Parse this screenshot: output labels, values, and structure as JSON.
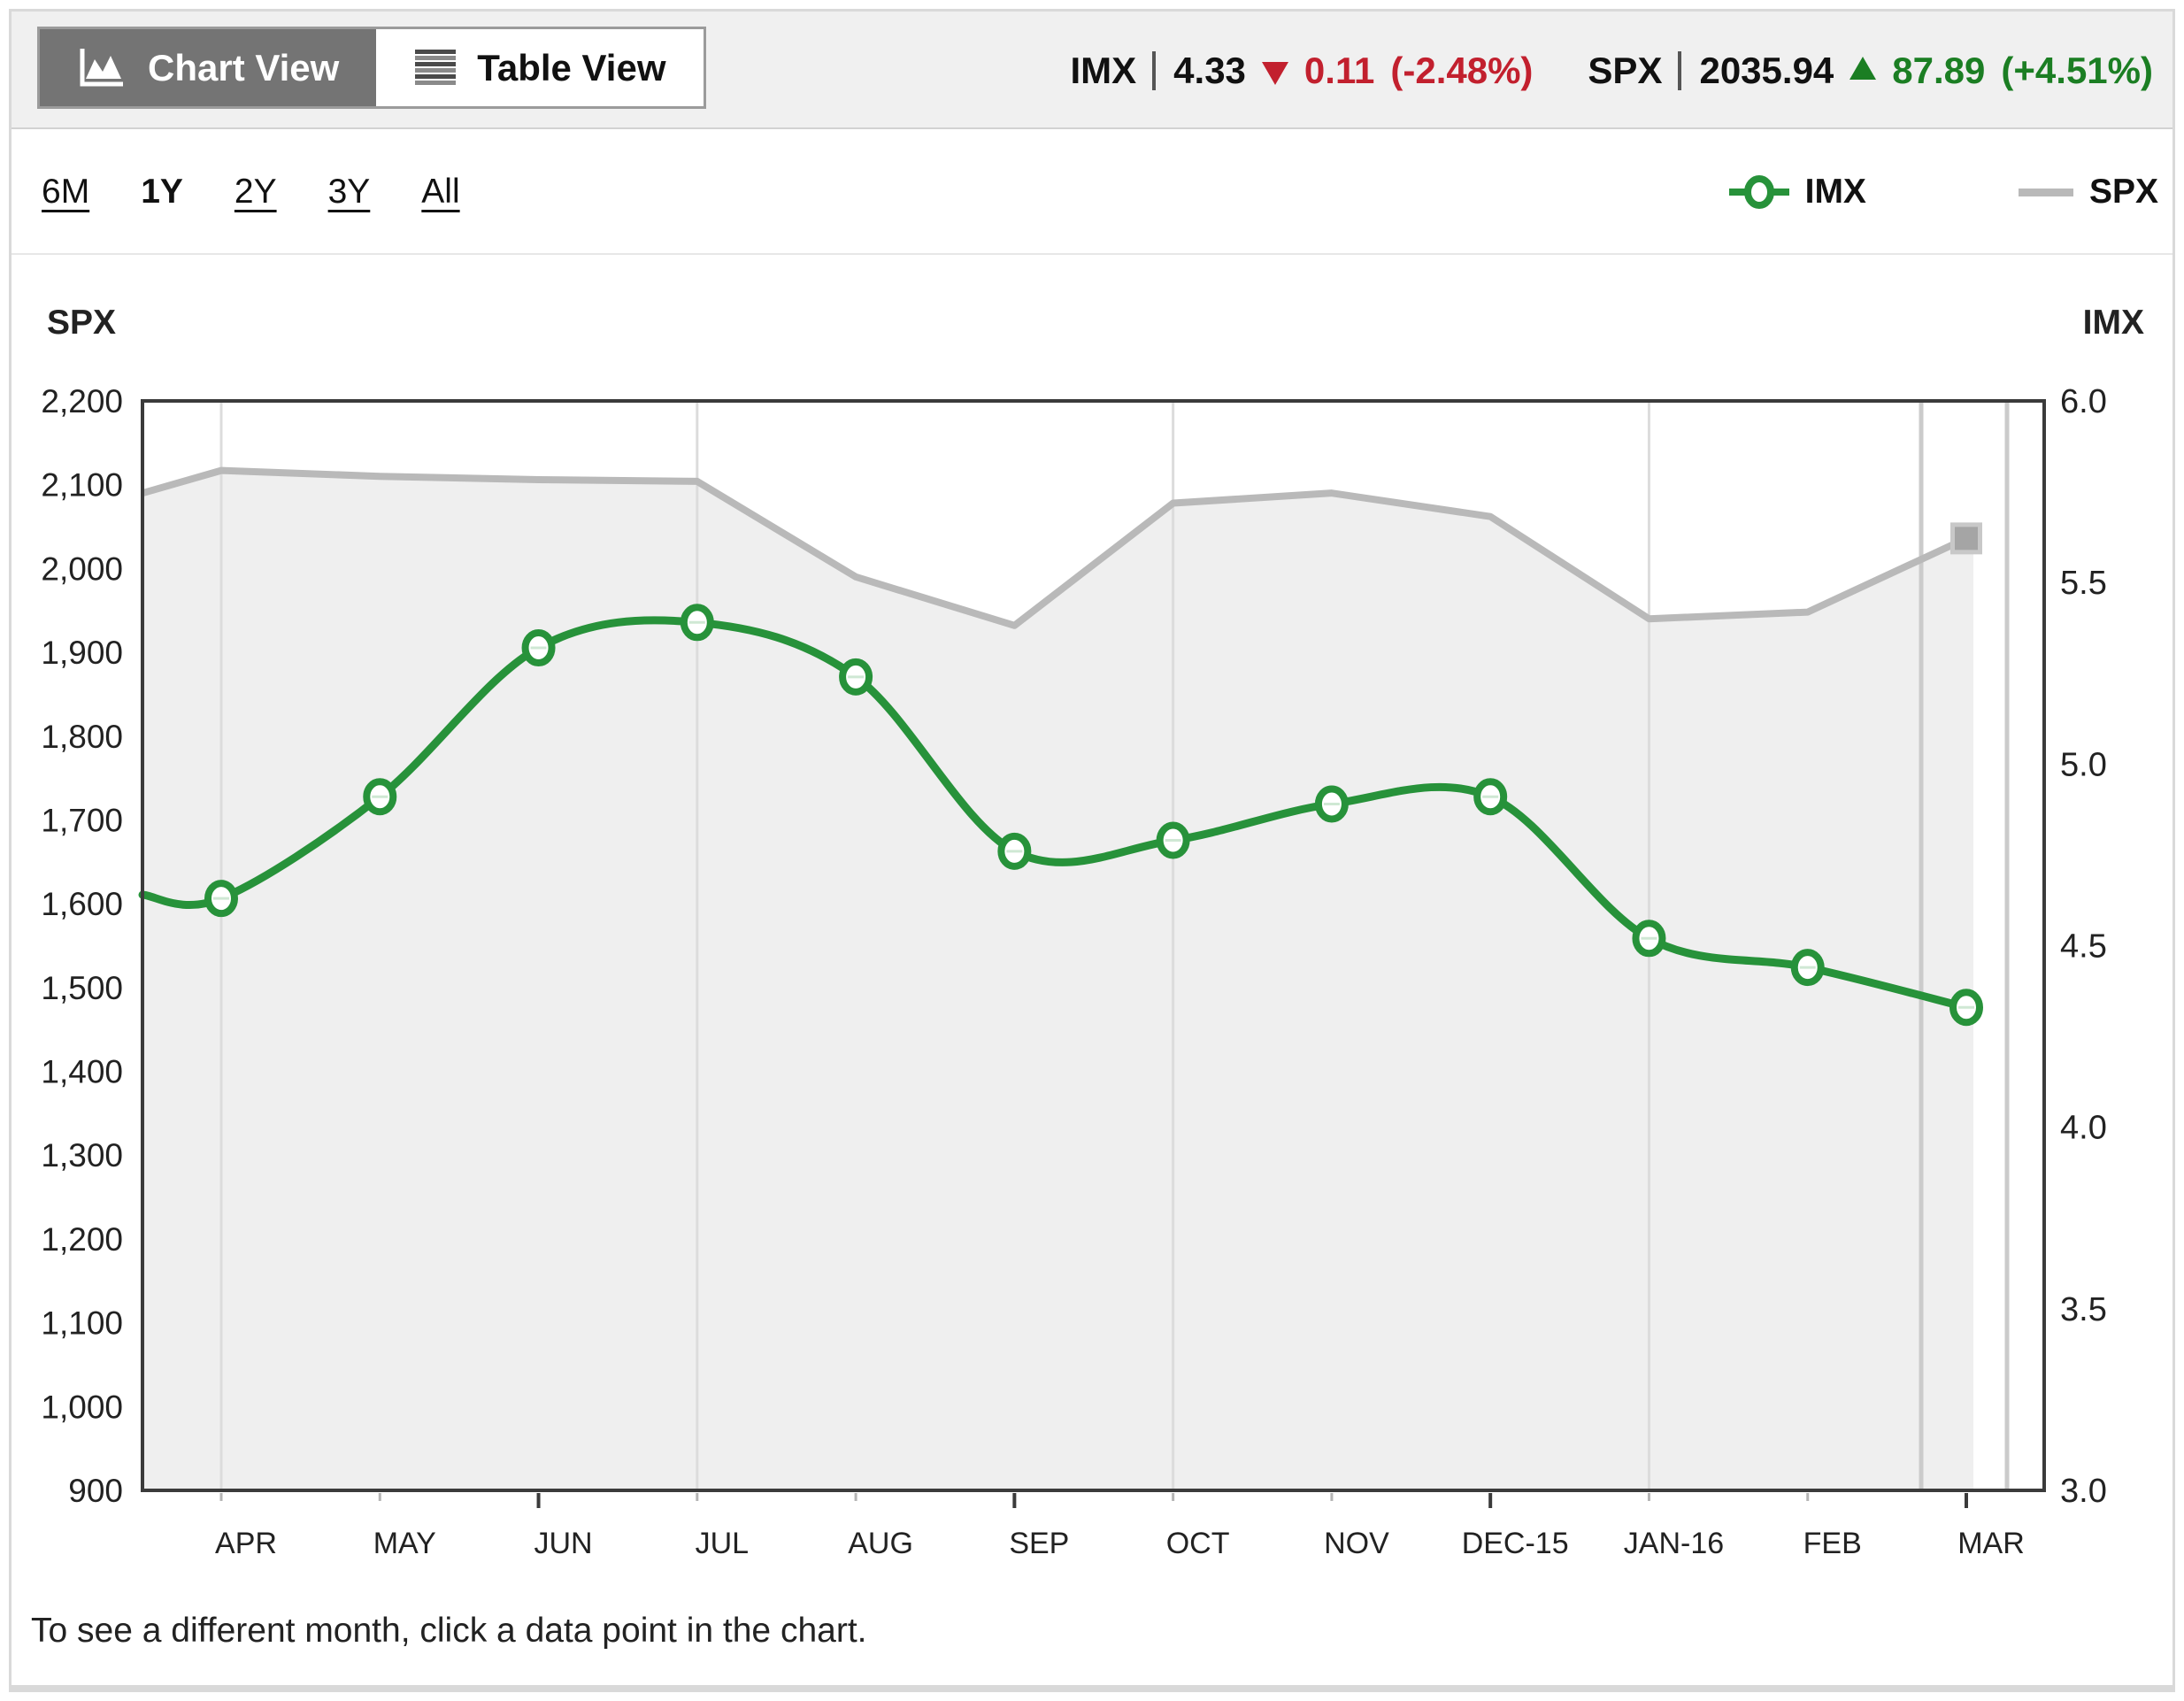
{
  "header": {
    "tabs": [
      {
        "label": "Chart View",
        "active": true
      },
      {
        "label": "Table View",
        "active": false
      }
    ],
    "quotes": [
      {
        "symbol": "IMX",
        "value": "4.33",
        "direction": "down",
        "change": "0.11",
        "change_pct": "(-2.48%)"
      },
      {
        "symbol": "SPX",
        "value": "2035.94",
        "direction": "up",
        "change": "87.89",
        "change_pct": "(+4.51%)"
      }
    ]
  },
  "controls": {
    "ranges": [
      {
        "label": "6M",
        "active": false
      },
      {
        "label": "1Y",
        "active": true
      },
      {
        "label": "2Y",
        "active": false
      },
      {
        "label": "3Y",
        "active": false
      },
      {
        "label": "All",
        "active": false
      }
    ],
    "legend": [
      {
        "label": "IMX",
        "marker": "green-line-with-circle"
      },
      {
        "label": "SPX",
        "marker": "gray-line"
      }
    ]
  },
  "chart": {
    "left_axis_title": "SPX",
    "right_axis_title": "IMX",
    "footnote": "To see a different month, click a data point in the chart."
  },
  "colors": {
    "imx_line": "#27923A",
    "spx_line": "#b9b9b9",
    "spx_fill": "#efefef",
    "quote_down_red": "#C2202E",
    "quote_up_green": "#1B7E23",
    "gridline": "#dcdcdc",
    "selection_band": "#cbcbcb",
    "axis_border": "#3b3b3b",
    "spx_square_outer": "#c8c8c8",
    "spx_square_inner": "#a5a5a5"
  },
  "chart_data": {
    "type": "line",
    "categories": [
      "APR",
      "MAY",
      "JUN",
      "JUL",
      "AUG",
      "SEP",
      "OCT",
      "NOV",
      "DEC-15",
      "JAN-16",
      "FEB",
      "MAR"
    ],
    "series": [
      {
        "name": "IMX",
        "axis": "right",
        "style": "green-line-circle-markers",
        "lead_in": 4.64,
        "values": [
          4.63,
          4.91,
          5.32,
          5.39,
          5.24,
          4.76,
          4.79,
          4.89,
          4.91,
          4.52,
          4.44,
          4.33
        ]
      },
      {
        "name": "SPX",
        "axis": "left",
        "style": "gray-line-area-fill",
        "lead_in": 2090,
        "values": [
          2117,
          2110,
          2106,
          2104,
          1990,
          1932,
          2078,
          2090,
          2062,
          1940,
          1948,
          2035.94
        ]
      }
    ],
    "left_axis": {
      "min": 900,
      "max": 2200,
      "tick_step": 100,
      "ticks": [
        "2,200",
        "2,100",
        "2,000",
        "1,900",
        "1,800",
        "1,700",
        "1,600",
        "1,500",
        "1,400",
        "1,300",
        "1,200",
        "1,100",
        "1,000",
        "900"
      ]
    },
    "right_axis": {
      "min": 3.0,
      "max": 6.0,
      "tick_step": 0.5,
      "ticks": [
        "6.0",
        "5.5",
        "5.0",
        "4.5",
        "4.0",
        "3.5",
        "3.0"
      ]
    },
    "grid_months": [
      "APR",
      "JUL",
      "OCT",
      "JAN-16"
    ],
    "strong_tick_months": [
      "JUN",
      "SEP",
      "DEC-15",
      "MAR"
    ],
    "selected_month": "MAR",
    "legend_position": "top-right",
    "grid": "vertical-quarterly-only"
  }
}
